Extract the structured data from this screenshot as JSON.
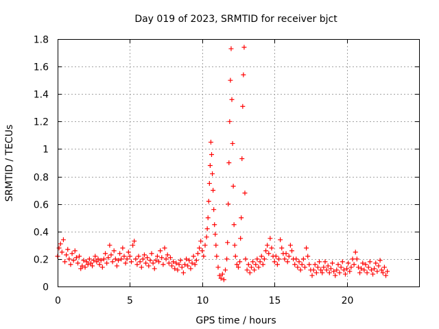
{
  "chart_data": {
    "type": "scatter",
    "title": "Day 019 of 2023, SRMTID for receiver bjct",
    "xlabel": "GPS time / hours",
    "ylabel": "SRMTID / TECUs",
    "xlim": [
      0,
      25
    ],
    "ylim": [
      0,
      1.8
    ],
    "xticks": [
      0,
      5,
      10,
      15,
      20
    ],
    "xtick_labels": [
      "0",
      "5",
      "10",
      "15",
      "20"
    ],
    "yticks": [
      0,
      0.2,
      0.4,
      0.6,
      0.8,
      1,
      1.2,
      1.4,
      1.6,
      1.8
    ],
    "ytick_labels": [
      "0",
      "0.2",
      "0.4",
      "0.6",
      "0.8",
      "1",
      "1.2",
      "1.4",
      "1.6",
      "1.8"
    ],
    "grid": true,
    "marker": "+",
    "color": "#ff0000",
    "series": [
      {
        "name": "SRMTID",
        "points": [
          [
            0.0,
            0.22
          ],
          [
            0.1,
            0.28
          ],
          [
            0.2,
            0.31
          ],
          [
            0.3,
            0.25
          ],
          [
            0.4,
            0.34
          ],
          [
            0.5,
            0.18
          ],
          [
            0.6,
            0.23
          ],
          [
            0.7,
            0.27
          ],
          [
            0.8,
            0.2
          ],
          [
            0.9,
            0.16
          ],
          [
            1.0,
            0.24
          ],
          [
            1.1,
            0.19
          ],
          [
            1.2,
            0.26
          ],
          [
            1.3,
            0.21
          ],
          [
            1.4,
            0.17
          ],
          [
            1.5,
            0.22
          ],
          [
            1.6,
            0.13
          ],
          [
            1.7,
            0.15
          ],
          [
            1.8,
            0.19
          ],
          [
            1.9,
            0.14
          ],
          [
            2.0,
            0.18
          ],
          [
            2.1,
            0.16
          ],
          [
            2.2,
            0.2
          ],
          [
            2.3,
            0.17
          ],
          [
            2.4,
            0.15
          ],
          [
            2.5,
            0.19
          ],
          [
            2.6,
            0.22
          ],
          [
            2.7,
            0.18
          ],
          [
            2.8,
            0.2
          ],
          [
            2.9,
            0.16
          ],
          [
            3.0,
            0.19
          ],
          [
            3.1,
            0.14
          ],
          [
            3.2,
            0.2
          ],
          [
            3.3,
            0.24
          ],
          [
            3.4,
            0.17
          ],
          [
            3.5,
            0.21
          ],
          [
            3.6,
            0.3
          ],
          [
            3.7,
            0.23
          ],
          [
            3.8,
            0.18
          ],
          [
            3.9,
            0.26
          ],
          [
            4.0,
            0.2
          ],
          [
            4.1,
            0.15
          ],
          [
            4.2,
            0.19
          ],
          [
            4.3,
            0.24
          ],
          [
            4.4,
            0.2
          ],
          [
            4.5,
            0.28
          ],
          [
            4.6,
            0.22
          ],
          [
            4.7,
            0.17
          ],
          [
            4.8,
            0.2
          ],
          [
            4.9,
            0.25
          ],
          [
            5.0,
            0.22
          ],
          [
            5.1,
            0.18
          ],
          [
            5.2,
            0.3
          ],
          [
            5.3,
            0.33
          ],
          [
            5.4,
            0.2
          ],
          [
            5.5,
            0.16
          ],
          [
            5.6,
            0.22
          ],
          [
            5.7,
            0.18
          ],
          [
            5.8,
            0.14
          ],
          [
            5.9,
            0.2
          ],
          [
            6.0,
            0.23
          ],
          [
            6.1,
            0.17
          ],
          [
            6.2,
            0.21
          ],
          [
            6.3,
            0.15
          ],
          [
            6.4,
            0.19
          ],
          [
            6.5,
            0.24
          ],
          [
            6.6,
            0.17
          ],
          [
            6.7,
            0.13
          ],
          [
            6.8,
            0.19
          ],
          [
            6.9,
            0.22
          ],
          [
            7.0,
            0.18
          ],
          [
            7.1,
            0.26
          ],
          [
            7.2,
            0.21
          ],
          [
            7.3,
            0.16
          ],
          [
            7.4,
            0.28
          ],
          [
            7.5,
            0.2
          ],
          [
            7.6,
            0.23
          ],
          [
            7.7,
            0.17
          ],
          [
            7.8,
            0.21
          ],
          [
            7.9,
            0.15
          ],
          [
            8.0,
            0.18
          ],
          [
            8.1,
            0.13
          ],
          [
            8.2,
            0.17
          ],
          [
            8.3,
            0.12
          ],
          [
            8.4,
            0.16
          ],
          [
            8.5,
            0.19
          ],
          [
            8.6,
            0.14
          ],
          [
            8.7,
            0.1
          ],
          [
            8.8,
            0.16
          ],
          [
            8.9,
            0.2
          ],
          [
            9.0,
            0.15
          ],
          [
            9.1,
            0.19
          ],
          [
            9.2,
            0.13
          ],
          [
            9.3,
            0.17
          ],
          [
            9.4,
            0.22
          ],
          [
            9.5,
            0.16
          ],
          [
            9.6,
            0.19
          ],
          [
            9.7,
            0.24
          ],
          [
            9.8,
            0.28
          ],
          [
            9.9,
            0.33
          ],
          [
            10.0,
            0.26
          ],
          [
            10.1,
            0.22
          ],
          [
            10.2,
            0.3
          ],
          [
            10.3,
            0.36
          ],
          [
            10.35,
            0.42
          ],
          [
            10.4,
            0.5
          ],
          [
            10.45,
            0.62
          ],
          [
            10.5,
            0.75
          ],
          [
            10.55,
            0.88
          ],
          [
            10.6,
            1.05
          ],
          [
            10.65,
            0.96
          ],
          [
            10.7,
            0.82
          ],
          [
            10.75,
            0.7
          ],
          [
            10.8,
            0.56
          ],
          [
            10.85,
            0.45
          ],
          [
            10.9,
            0.38
          ],
          [
            10.95,
            0.3
          ],
          [
            11.0,
            0.22
          ],
          [
            11.1,
            0.14
          ],
          [
            11.2,
            0.08
          ],
          [
            11.3,
            0.06
          ],
          [
            11.4,
            0.09
          ],
          [
            11.5,
            0.05
          ],
          [
            11.6,
            0.12
          ],
          [
            11.7,
            0.2
          ],
          [
            11.75,
            0.32
          ],
          [
            11.8,
            0.6
          ],
          [
            11.85,
            0.9
          ],
          [
            11.9,
            1.2
          ],
          [
            11.95,
            1.5
          ],
          [
            12.0,
            1.73
          ],
          [
            12.05,
            1.36
          ],
          [
            12.1,
            1.04
          ],
          [
            12.15,
            0.73
          ],
          [
            12.2,
            0.45
          ],
          [
            12.25,
            0.3
          ],
          [
            12.3,
            0.22
          ],
          [
            12.4,
            0.16
          ],
          [
            12.5,
            0.14
          ],
          [
            12.6,
            0.18
          ],
          [
            12.65,
            0.35
          ],
          [
            12.7,
            0.5
          ],
          [
            12.75,
            0.93
          ],
          [
            12.8,
            1.31
          ],
          [
            12.85,
            1.54
          ],
          [
            12.9,
            1.74
          ],
          [
            12.95,
            0.68
          ],
          [
            13.0,
            0.2
          ],
          [
            13.1,
            0.12
          ],
          [
            13.2,
            0.16
          ],
          [
            13.3,
            0.1
          ],
          [
            13.4,
            0.14
          ],
          [
            13.5,
            0.18
          ],
          [
            13.6,
            0.12
          ],
          [
            13.7,
            0.16
          ],
          [
            13.8,
            0.2
          ],
          [
            13.9,
            0.14
          ],
          [
            14.0,
            0.18
          ],
          [
            14.1,
            0.22
          ],
          [
            14.2,
            0.16
          ],
          [
            14.3,
            0.2
          ],
          [
            14.4,
            0.26
          ],
          [
            14.5,
            0.3
          ],
          [
            14.6,
            0.24
          ],
          [
            14.7,
            0.35
          ],
          [
            14.8,
            0.28
          ],
          [
            14.9,
            0.22
          ],
          [
            15.0,
            0.18
          ],
          [
            15.1,
            0.22
          ],
          [
            15.2,
            0.16
          ],
          [
            15.3,
            0.2
          ],
          [
            15.4,
            0.34
          ],
          [
            15.5,
            0.28
          ],
          [
            15.6,
            0.24
          ],
          [
            15.7,
            0.2
          ],
          [
            15.8,
            0.24
          ],
          [
            15.9,
            0.18
          ],
          [
            16.0,
            0.22
          ],
          [
            16.1,
            0.3
          ],
          [
            16.2,
            0.26
          ],
          [
            16.3,
            0.2
          ],
          [
            16.4,
            0.16
          ],
          [
            16.5,
            0.2
          ],
          [
            16.6,
            0.14
          ],
          [
            16.7,
            0.18
          ],
          [
            16.8,
            0.12
          ],
          [
            16.9,
            0.16
          ],
          [
            17.0,
            0.2
          ],
          [
            17.1,
            0.14
          ],
          [
            17.2,
            0.28
          ],
          [
            17.3,
            0.22
          ],
          [
            17.4,
            0.16
          ],
          [
            17.5,
            0.12
          ],
          [
            17.6,
            0.08
          ],
          [
            17.7,
            0.12
          ],
          [
            17.8,
            0.16
          ],
          [
            17.9,
            0.1
          ],
          [
            18.0,
            0.14
          ],
          [
            18.1,
            0.18
          ],
          [
            18.2,
            0.12
          ],
          [
            18.3,
            0.1
          ],
          [
            18.4,
            0.14
          ],
          [
            18.5,
            0.18
          ],
          [
            18.6,
            0.12
          ],
          [
            18.7,
            0.15
          ],
          [
            18.8,
            0.1
          ],
          [
            18.9,
            0.13
          ],
          [
            19.0,
            0.17
          ],
          [
            19.1,
            0.11
          ],
          [
            19.2,
            0.08
          ],
          [
            19.3,
            0.12
          ],
          [
            19.4,
            0.16
          ],
          [
            19.5,
            0.1
          ],
          [
            19.6,
            0.14
          ],
          [
            19.7,
            0.18
          ],
          [
            19.8,
            0.12
          ],
          [
            19.9,
            0.09
          ],
          [
            20.0,
            0.13
          ],
          [
            20.1,
            0.17
          ],
          [
            20.2,
            0.11
          ],
          [
            20.3,
            0.14
          ],
          [
            20.4,
            0.2
          ],
          [
            20.5,
            0.16
          ],
          [
            20.6,
            0.25
          ],
          [
            20.7,
            0.2
          ],
          [
            20.8,
            0.14
          ],
          [
            20.9,
            0.1
          ],
          [
            21.0,
            0.13
          ],
          [
            21.1,
            0.17
          ],
          [
            21.2,
            0.12
          ],
          [
            21.3,
            0.16
          ],
          [
            21.4,
            0.1
          ],
          [
            21.5,
            0.14
          ],
          [
            21.6,
            0.18
          ],
          [
            21.7,
            0.12
          ],
          [
            21.8,
            0.09
          ],
          [
            21.9,
            0.13
          ],
          [
            22.0,
            0.17
          ],
          [
            22.1,
            0.11
          ],
          [
            22.2,
            0.15
          ],
          [
            22.3,
            0.19
          ],
          [
            22.4,
            0.12
          ],
          [
            22.5,
            0.1
          ],
          [
            22.6,
            0.14
          ],
          [
            22.7,
            0.08
          ],
          [
            22.8,
            0.11
          ]
        ]
      }
    ]
  }
}
